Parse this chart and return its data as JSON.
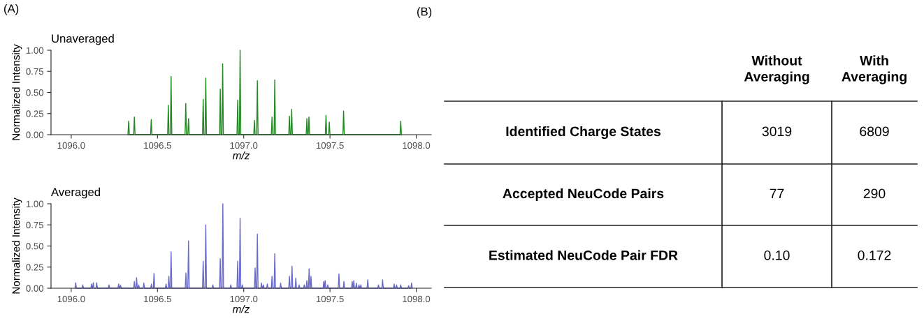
{
  "chart_data": [
    {
      "type": "line",
      "title": "Unaveraged",
      "xlabel": "m/z",
      "ylabel": "Normalized Intensity",
      "annotations": [
        "(A)"
      ],
      "xlim": [
        1095.883,
        1098.087
      ],
      "ylim": [
        0,
        1.0
      ],
      "xticks": [
        {
          "value": 1096.0,
          "label": "1096.0"
        },
        {
          "value": 1096.5,
          "label": "1096.5"
        },
        {
          "value": 1097.0,
          "label": "1097.0"
        },
        {
          "value": 1097.5,
          "label": "1097.5"
        },
        {
          "value": 1098.0,
          "label": "1098.0"
        }
      ],
      "yticks": [
        {
          "value": 0,
          "label": "0.00"
        },
        {
          "value": 0.25,
          "label": "0.25"
        },
        {
          "value": 0.5,
          "label": "0.50"
        },
        {
          "value": 0.75,
          "label": "0.75"
        },
        {
          "value": 1.0,
          "label": "1.00"
        }
      ],
      "series": [
        {
          "color": "#228b22",
          "x": [
            1096.329,
            1096.333,
            1096.337,
            1096.362,
            1096.366,
            1096.37,
            1096.46,
            1096.464,
            1096.468,
            1096.559,
            1096.563,
            1096.567,
            1096.575,
            1096.579,
            1096.583,
            1096.66,
            1096.664,
            1096.668,
            1096.676,
            1096.68,
            1096.684,
            1096.761,
            1096.765,
            1096.769,
            1096.776,
            1096.78,
            1096.784,
            1096.86,
            1096.864,
            1096.868,
            1096.874,
            1096.878,
            1096.882,
            1096.961,
            1096.965,
            1096.969,
            1096.975,
            1096.979,
            1096.983,
            1097.058,
            1097.062,
            1097.066,
            1097.075,
            1097.079,
            1097.083,
            1097.16,
            1097.164,
            1097.168,
            1097.176,
            1097.18,
            1097.184,
            1097.261,
            1097.265,
            1097.269,
            1097.274,
            1097.278,
            1097.282,
            1097.362,
            1097.366,
            1097.37,
            1097.374,
            1097.378,
            1097.382,
            1097.473,
            1097.477,
            1097.481,
            1097.492,
            1097.496,
            1097.5,
            1097.575,
            1097.579,
            1097.583,
            1097.906,
            1097.91,
            1097.914
          ],
          "values": [
            0,
            0.16,
            0,
            0,
            0.21,
            0,
            0,
            0.18,
            0,
            0,
            0.35,
            0,
            0,
            0.69,
            0,
            0,
            0.37,
            0,
            0,
            0.19,
            0,
            0,
            0.42,
            0,
            0,
            0.67,
            0,
            0,
            0.54,
            0,
            0,
            0.84,
            0,
            0,
            0.41,
            0,
            0,
            1.0,
            0,
            0,
            0.17,
            0,
            0,
            0.64,
            0,
            0,
            0.21,
            0,
            0,
            0.65,
            0,
            0,
            0.22,
            0,
            0,
            0.3,
            0,
            0,
            0.19,
            0,
            0,
            0.21,
            0,
            0,
            0.23,
            0,
            0,
            0.15,
            0,
            0,
            0.28,
            0,
            0,
            0.16,
            0
          ]
        }
      ]
    },
    {
      "type": "line",
      "title": "Averaged",
      "xlabel": "m/z",
      "ylabel": "Normalized Intensity",
      "xlim": [
        1095.883,
        1098.087
      ],
      "ylim": [
        0,
        1.0
      ],
      "xticks": [
        {
          "value": 1096.0,
          "label": "1096.0"
        },
        {
          "value": 1096.5,
          "label": "1096.5"
        },
        {
          "value": 1097.0,
          "label": "1097.0"
        },
        {
          "value": 1097.5,
          "label": "1097.5"
        },
        {
          "value": 1098.0,
          "label": "1098.0"
        }
      ],
      "yticks": [
        {
          "value": 0,
          "label": "0.00"
        },
        {
          "value": 0.25,
          "label": "0.25"
        },
        {
          "value": 0.5,
          "label": "0.50"
        },
        {
          "value": 0.75,
          "label": "0.75"
        },
        {
          "value": 1.0,
          "label": "1.00"
        }
      ],
      "series": [
        {
          "color": "#6b6bcc",
          "x": [
            1096.022,
            1096.026,
            1096.03,
            1096.063,
            1096.067,
            1096.071,
            1096.114,
            1096.118,
            1096.122,
            1096.124,
            1096.128,
            1096.132,
            1096.144,
            1096.148,
            1096.152,
            1096.215,
            1096.219,
            1096.223,
            1096.271,
            1096.275,
            1096.279,
            1096.282,
            1096.286,
            1096.29,
            1096.362,
            1096.366,
            1096.37,
            1096.375,
            1096.379,
            1096.383,
            1096.387,
            1096.391,
            1096.395,
            1096.417,
            1096.421,
            1096.425,
            1096.461,
            1096.465,
            1096.469,
            1096.476,
            1096.48,
            1096.484,
            1096.546,
            1096.55,
            1096.554,
            1096.562,
            1096.566,
            1096.57,
            1096.575,
            1096.579,
            1096.583,
            1096.661,
            1096.665,
            1096.669,
            1096.676,
            1096.68,
            1096.684,
            1096.761,
            1096.765,
            1096.769,
            1096.776,
            1096.78,
            1096.784,
            1096.817,
            1096.821,
            1096.825,
            1096.86,
            1096.864,
            1096.868,
            1096.875,
            1096.879,
            1096.883,
            1096.921,
            1096.925,
            1096.929,
            1096.961,
            1096.965,
            1096.969,
            1096.975,
            1096.979,
            1096.983,
            1096.988,
            1096.992,
            1096.996,
            1097.062,
            1097.066,
            1097.07,
            1097.075,
            1097.079,
            1097.083,
            1097.099,
            1097.103,
            1097.107,
            1097.11,
            1097.114,
            1097.118,
            1097.133,
            1097.137,
            1097.141,
            1097.16,
            1097.164,
            1097.168,
            1097.176,
            1097.18,
            1097.184,
            1097.21,
            1097.214,
            1097.218,
            1097.261,
            1097.265,
            1097.269,
            1097.276,
            1097.28,
            1097.284,
            1097.298,
            1097.302,
            1097.306,
            1097.317,
            1097.321,
            1097.325,
            1097.347,
            1097.351,
            1097.355,
            1097.362,
            1097.366,
            1097.37,
            1097.375,
            1097.379,
            1097.383,
            1097.386,
            1097.39,
            1097.394,
            1097.46,
            1097.464,
            1097.468,
            1097.472,
            1097.476,
            1097.483,
            1097.487,
            1097.491,
            1097.548,
            1097.552,
            1097.556,
            1097.577,
            1097.581,
            1097.585,
            1097.625,
            1097.629,
            1097.633,
            1097.634,
            1097.638,
            1097.642,
            1097.649,
            1097.653,
            1097.657,
            1097.664,
            1097.668,
            1097.672,
            1097.675,
            1097.679,
            1097.683,
            1097.715,
            1097.719,
            1097.723,
            1097.777,
            1097.781,
            1097.785,
            1097.801,
            1097.805,
            1097.809,
            1097.868,
            1097.872,
            1097.876,
            1097.882,
            1097.886,
            1097.89,
            1097.906,
            1097.91,
            1097.914,
            1097.952,
            1097.956,
            1097.96,
            1097.969,
            1097.973,
            1097.977
          ],
          "values": [
            0,
            0.065,
            0,
            0,
            0.04,
            0,
            0,
            0.05,
            0,
            0,
            0.065,
            0,
            0,
            0.065,
            0,
            0,
            0.04,
            0,
            0,
            0.05,
            0,
            0,
            0.035,
            0,
            0,
            0.08,
            0,
            0,
            0.125,
            0,
            0,
            0.04,
            0,
            0,
            0.06,
            0,
            0,
            0.05,
            0,
            0,
            0.175,
            0,
            0,
            0.05,
            0,
            0,
            0.14,
            0,
            0,
            0.43,
            0,
            0,
            0.18,
            0,
            0,
            0.56,
            0,
            0,
            0.32,
            0,
            0,
            0.75,
            0,
            0,
            0.04,
            0,
            0,
            0.35,
            0,
            0,
            1.0,
            0,
            0,
            0.04,
            0,
            0,
            0.32,
            0,
            0,
            0.83,
            0,
            0,
            0.04,
            0,
            0,
            0.24,
            0,
            0,
            0.64,
            0,
            0,
            0.06,
            0,
            0,
            0.04,
            0,
            0,
            0.05,
            0,
            0,
            0.14,
            0,
            0,
            0.41,
            0,
            0,
            0.06,
            0,
            0,
            0.14,
            0,
            0,
            0.26,
            0,
            0,
            0.12,
            0,
            0,
            0.04,
            0,
            0,
            0.04,
            0,
            0,
            0.09,
            0,
            0,
            0.23,
            0,
            0,
            0.14,
            0,
            0,
            0.08,
            0,
            0.09,
            0,
            0,
            0.04,
            0,
            0,
            0.17,
            0,
            0,
            0.08,
            0,
            0,
            0.08,
            0,
            0,
            0.09,
            0,
            0,
            0.06,
            0,
            0,
            0.04,
            0,
            0,
            0.04,
            0,
            0,
            0.1,
            0,
            0,
            0.04,
            0,
            0,
            0.1,
            0,
            0,
            0.05,
            0,
            0,
            0.04,
            0,
            0,
            0.04,
            0,
            0,
            0.03,
            0,
            0,
            0.06,
            0
          ]
        }
      ]
    },
    {
      "type": "other",
      "title": "(B)",
      "categories": [
        "Identified Charge States",
        "Accepted NeuCode Pairs",
        "Estimated NeuCode Pair FDR"
      ],
      "series": [
        {
          "name": "Without Averaging",
          "values": [
            3019,
            77,
            0.1
          ],
          "value_labels": [
            "3019",
            "77",
            "0.10"
          ]
        },
        {
          "name": "With Averaging",
          "values": [
            6809,
            290,
            0.172
          ],
          "value_labels": [
            "6809",
            "290",
            "0.172"
          ]
        }
      ]
    }
  ]
}
